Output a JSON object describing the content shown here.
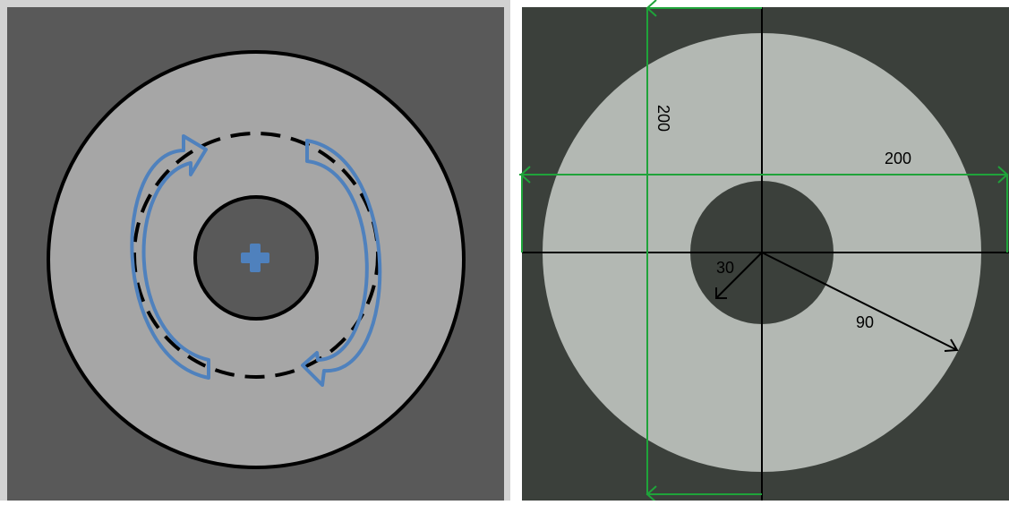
{
  "left_diagram": {
    "colors": {
      "frame": "#d2d2d2",
      "background": "#595959",
      "ring": "#a6a6a6",
      "hole": "#595959",
      "outline": "#000000",
      "arrows": "#4f81bd",
      "center_mark": "#4f81bd"
    },
    "icons": [
      "plus-icon",
      "curved-arrow-icon"
    ]
  },
  "right_diagram": {
    "colors": {
      "background": "#3b403b",
      "disc": "#b3b8b3",
      "hole": "#3b403b",
      "axes": "#000000",
      "dimension_lines": "#1fa33a",
      "radius_arrows": "#000000",
      "text": "#000000"
    },
    "labels": {
      "vertical_dimension": "200",
      "horizontal_dimension": "200",
      "inner_radius": "30",
      "outer_radius": "90"
    }
  }
}
